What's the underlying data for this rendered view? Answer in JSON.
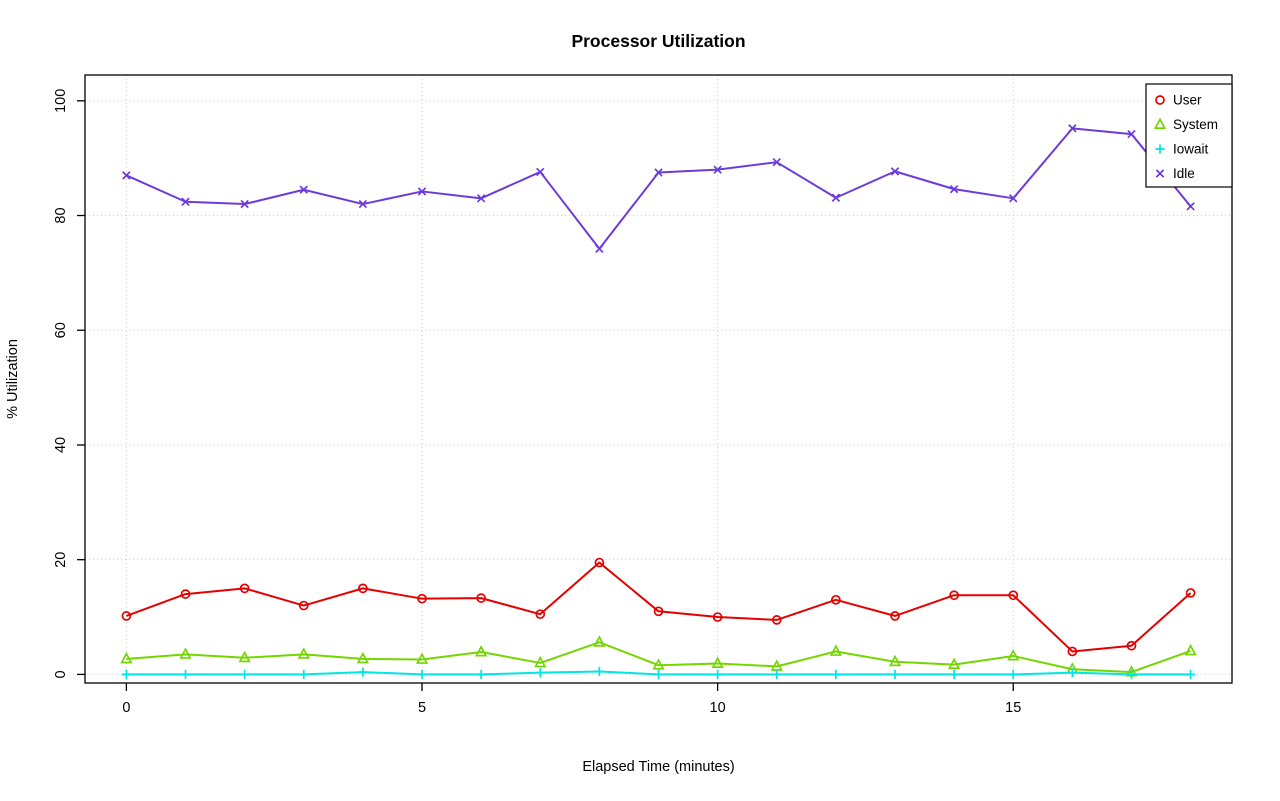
{
  "chart_data": {
    "type": "line",
    "title": "Processor Utilization",
    "xlabel": "Elapsed Time (minutes)",
    "ylabel": "% Utilization",
    "x": [
      0,
      1,
      2,
      3,
      4,
      5,
      6,
      7,
      8,
      9,
      10,
      11,
      12,
      13,
      14,
      15,
      16,
      17,
      18
    ],
    "xticks": [
      0,
      5,
      10,
      15
    ],
    "yticks": [
      0,
      20,
      40,
      60,
      80,
      100
    ],
    "xlim": [
      -0.7,
      18.7
    ],
    "ylim": [
      -1.5,
      104.5
    ],
    "grid": true,
    "grid_color": "#cfcfcf",
    "background": "#ffffff",
    "series": [
      {
        "name": "User",
        "color": "#e60000",
        "marker": "circle",
        "values": [
          10.2,
          14,
          15,
          12,
          15,
          13.2,
          13.3,
          10.5,
          19.5,
          11,
          10,
          9.5,
          13,
          10.2,
          13.8,
          13.8,
          4,
          5,
          14.2
        ]
      },
      {
        "name": "System",
        "color": "#74d600",
        "marker": "triangle",
        "values": [
          2.7,
          3.5,
          2.9,
          3.5,
          2.7,
          2.6,
          3.9,
          2,
          5.6,
          1.6,
          1.9,
          1.4,
          4,
          2.2,
          1.7,
          3.2,
          0.9,
          0.4,
          4.1
        ]
      },
      {
        "name": "Iowait",
        "color": "#00e5e5",
        "marker": "plus",
        "values": [
          0,
          0,
          0,
          0,
          0.4,
          0,
          0,
          0.3,
          0.5,
          0,
          0,
          0,
          0,
          0,
          0,
          0,
          0.3,
          0,
          0
        ]
      },
      {
        "name": "Idle",
        "color": "#6d3bdb",
        "marker": "x",
        "values": [
          87,
          82.4,
          82,
          84.5,
          82,
          84.2,
          83,
          87.6,
          74.2,
          87.5,
          88,
          89.3,
          83.1,
          87.7,
          84.6,
          83,
          95.2,
          94.2,
          81.6
        ]
      }
    ],
    "legend": {
      "position": "top-right",
      "labels": [
        "User",
        "System",
        "Iowait",
        "Idle"
      ]
    }
  }
}
